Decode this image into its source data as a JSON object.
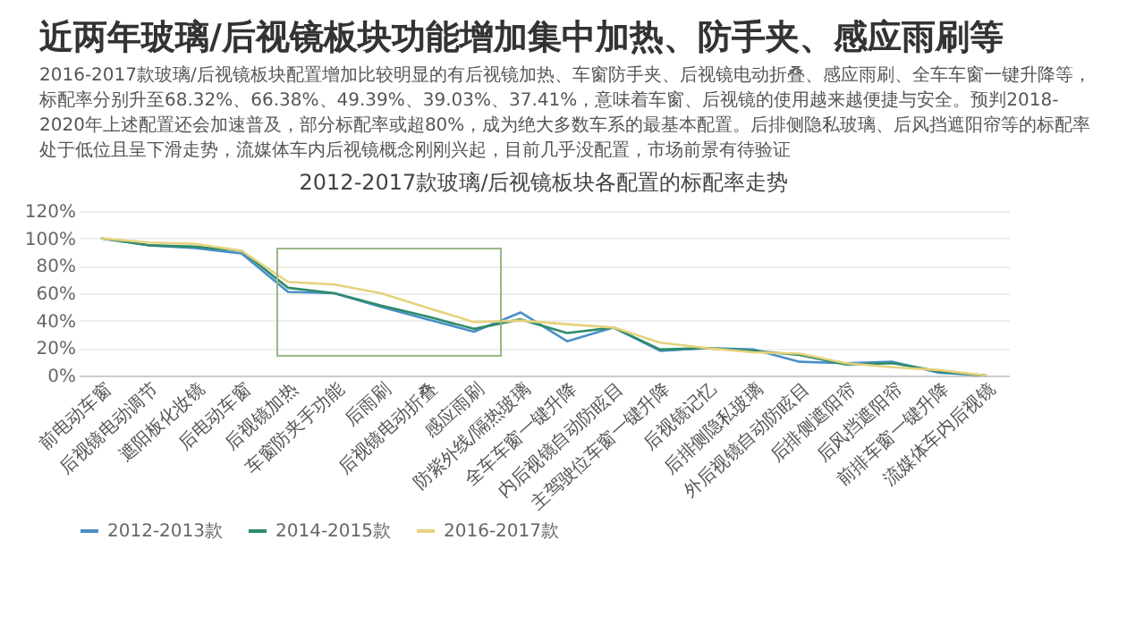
{
  "chart_data": {
    "type": "line",
    "title": "2012-2017款玻璃/后视镜板块各配置的标配率走势",
    "subtitle": "近两年玻璃/后视镜板块功能增加集中加热、防手夹、感应雨刷等",
    "annotations": [
      "2016-2017款玻璃/后视镜板块配置增加比较明显的有后视镜加热、车窗防手夹、后视镜电动折叠、感应雨刷、全车车窗一键升降等，标配率分别升至68.32%、66.38%、49.39%、39.03%、37.41%，意味着车窗、后视镜的使用越来越便捷与安全。预判2018-2020年上述配置还会加速普及，部分标配率或超80%，成为绝大多数车系的最基本配置。后排侧隐私玻璃、后风挡遮阳帘等的标配率处于低位且呈下滑走势，流媒体车内后视镜概念刚刚兴起，目前几乎没配置，市场前景有待验证"
    ],
    "categories": [
      "前电动车窗",
      "后视镜电动调节",
      "遮阳板化妆镜",
      "后电动车窗",
      "后视镜加热",
      "车窗防夹手功能",
      "后雨刷",
      "后视镜电动折叠",
      "感应雨刷",
      "防紫外线/隔热玻璃",
      "全车车窗一键升降",
      "内后视镜自动防眩目",
      "主驾驶位车窗一键升降",
      "后视镜记忆",
      "后排侧隐私玻璃",
      "外后视镜自动防眩目",
      "后排侧遮阳帘",
      "后风挡遮阳帘",
      "前排车窗一键升降",
      "流媒体车内后视镜"
    ],
    "series": [
      {
        "name": "2012-2013款",
        "color": "#4a90c8",
        "values": [
          100,
          95,
          93,
          89,
          61,
          60,
          50,
          41,
          32,
          46,
          25,
          35,
          18,
          20,
          19,
          10,
          9,
          10,
          2,
          0
        ]
      },
      {
        "name": "2014-2015款",
        "color": "#2e8b6a",
        "values": [
          100,
          95,
          94,
          91,
          64,
          60,
          51,
          43,
          34,
          41,
          31,
          35,
          19,
          20,
          18,
          15,
          8,
          9,
          3,
          0
        ]
      },
      {
        "name": "2016-2017款",
        "color": "#e6d27e",
        "values": [
          100,
          97,
          96,
          91,
          68.32,
          66.38,
          60,
          49.39,
          39.03,
          40,
          37.41,
          35,
          24,
          20,
          17,
          16,
          9,
          6,
          4,
          0
        ]
      }
    ],
    "ylim": [
      0,
      120
    ],
    "yticks": [
      {
        "value": 0,
        "label": "0%"
      },
      {
        "value": 20,
        "label": "20%"
      },
      {
        "value": 40,
        "label": "40%"
      },
      {
        "value": 60,
        "label": "60%"
      },
      {
        "value": 80,
        "label": "80%"
      },
      {
        "value": 100,
        "label": "100%"
      },
      {
        "value": 120,
        "label": "120%"
      }
    ],
    "grid": "y",
    "legend": "bottom",
    "marker": "none",
    "line_style": "solid"
  }
}
